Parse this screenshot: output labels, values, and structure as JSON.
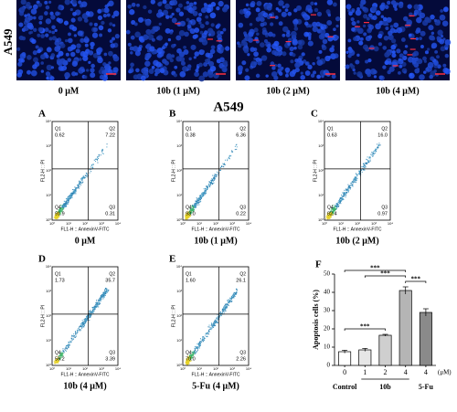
{
  "figure": {
    "row_label": "A549",
    "microscopy": [
      {
        "label": "0 μM"
      },
      {
        "label": "10b (1 μM)"
      },
      {
        "label": "10b (2 μM)"
      },
      {
        "label": "10b (4 μM)"
      }
    ],
    "flow_title": "A549",
    "flow_x_label": "FL1-H :: AnnexinV-FITC",
    "flow_y_label": "FL2-H :: PI",
    "flow_ticks": [
      "10⁰",
      "10¹",
      "10²",
      "10³",
      "10⁴"
    ],
    "panels": [
      {
        "letter": "A",
        "label": "0 μM",
        "quadrants": [
          {
            "name": "Q1",
            "value": "0.62"
          },
          {
            "name": "Q2",
            "value": "7.22"
          },
          {
            "name": "Q3",
            "value": "0.31"
          },
          {
            "name": "Q4",
            "value": "91.9"
          }
        ]
      },
      {
        "letter": "B",
        "label": "10b (1 μM)",
        "quadrants": [
          {
            "name": "Q1",
            "value": "0.38"
          },
          {
            "name": "Q2",
            "value": "6.36"
          },
          {
            "name": "Q3",
            "value": "0.22"
          },
          {
            "name": "Q4",
            "value": "93.0"
          }
        ]
      },
      {
        "letter": "C",
        "label": "10b (2 μM)",
        "quadrants": [
          {
            "name": "Q1",
            "value": "0.63"
          },
          {
            "name": "Q2",
            "value": "16.0"
          },
          {
            "name": "Q3",
            "value": "0.97"
          },
          {
            "name": "Q4",
            "value": "82.4"
          }
        ]
      },
      {
        "letter": "D",
        "label": "10b (4 μM)",
        "quadrants": [
          {
            "name": "Q1",
            "value": "1.73"
          },
          {
            "name": "Q2",
            "value": "35.7"
          },
          {
            "name": "Q3",
            "value": "3.39"
          },
          {
            "name": "Q4",
            "value": "59.2"
          }
        ]
      },
      {
        "letter": "E",
        "label": "5-Fu (4 μM)",
        "quadrants": [
          {
            "name": "Q1",
            "value": "1.60"
          },
          {
            "name": "Q2",
            "value": "26.1"
          },
          {
            "name": "Q3",
            "value": "2.26"
          },
          {
            "name": "Q4",
            "value": "70.0"
          }
        ]
      }
    ]
  },
  "chart_data": {
    "type": "bar",
    "panel_label": "F",
    "y_label": "Apoptosis cells (%)",
    "categories": [
      "0",
      "1",
      "2",
      "4",
      "4"
    ],
    "unit_label": "(μM)",
    "groups": [
      {
        "label": "Control",
        "span": [
          0,
          0
        ]
      },
      {
        "label": "10b",
        "span": [
          1,
          3
        ]
      },
      {
        "label": "5-Fu",
        "span": [
          4,
          4
        ]
      }
    ],
    "values": [
      7.5,
      8.5,
      16.5,
      41,
      29
    ],
    "errors": [
      0.8,
      0.8,
      0.5,
      2,
      2
    ],
    "colors": [
      "#ffffff",
      "#e6e6e6",
      "#cfcfcf",
      "#b5b5b5",
      "#8a8a8a"
    ],
    "ylim": [
      0,
      50
    ],
    "yticks": [
      0,
      10,
      20,
      30,
      40,
      50
    ],
    "comparisons": [
      {
        "label": "***",
        "pair": [
          0,
          2
        ]
      },
      {
        "label": "***",
        "pair": [
          3,
          4
        ]
      },
      {
        "label": "***",
        "pair": [
          1,
          3
        ]
      },
      {
        "label": "***",
        "pair": [
          0,
          3
        ]
      }
    ]
  }
}
